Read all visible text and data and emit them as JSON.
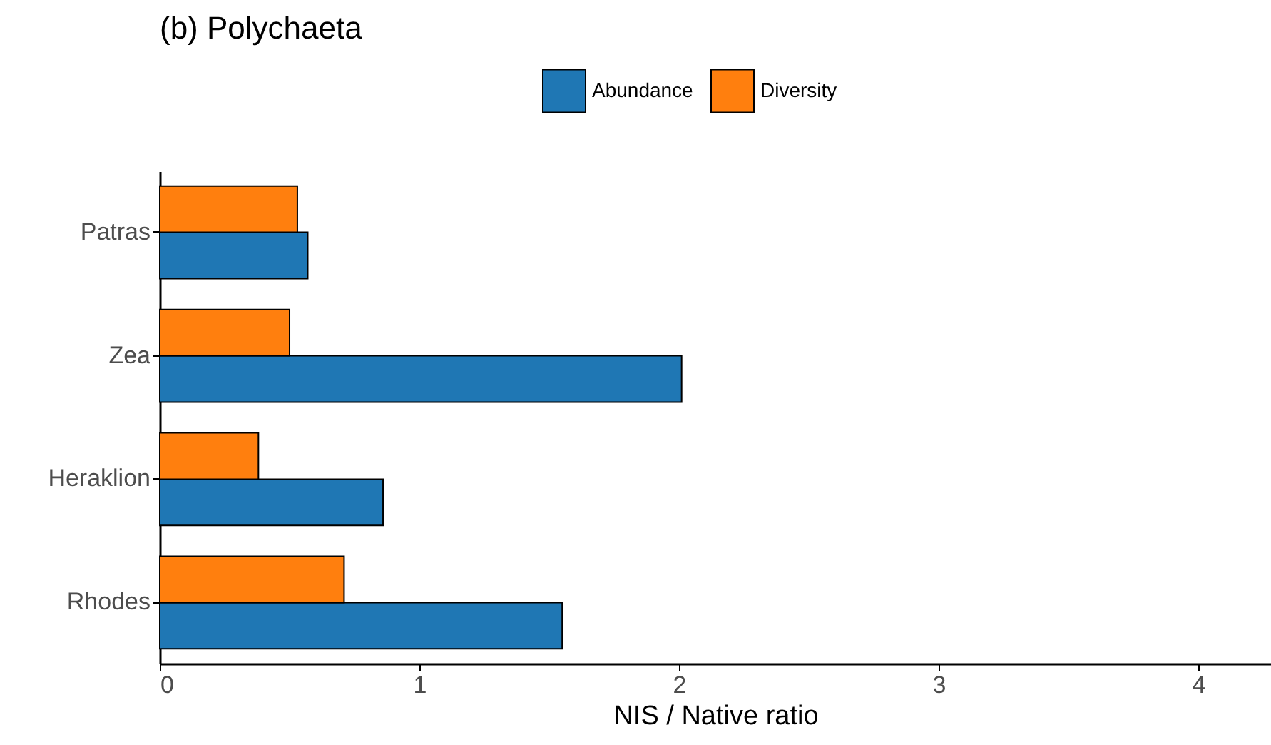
{
  "chart_data": {
    "type": "bar",
    "orientation": "horizontal",
    "title": "(b) Polychaeta",
    "xlabel": "NIS / Native ratio",
    "categories": [
      "Patras",
      "Zea",
      "Heraklion",
      "Rhodes"
    ],
    "series": [
      {
        "name": "Abundance",
        "color": "#1f77b4",
        "values": [
          0.57,
          2.01,
          0.86,
          1.55
        ]
      },
      {
        "name": "Diversity",
        "color": "#ff7f0e",
        "values": [
          0.53,
          0.5,
          0.38,
          0.71
        ]
      }
    ],
    "xlim": [
      0,
      4.28
    ],
    "xticks": [
      0,
      1,
      2,
      3,
      4
    ],
    "grid": false,
    "legend": "top"
  }
}
